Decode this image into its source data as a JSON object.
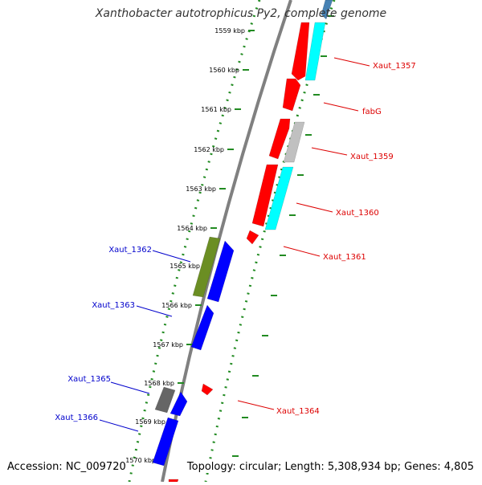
{
  "title": "Xanthobacter autotrophicus Py2, complete genome",
  "footer": {
    "accession": "Accession: NC_009720",
    "topology": "Topology: circular; Length: 5,308,934 bp; Genes: 4,805"
  },
  "colors": {
    "scale": "#228B22",
    "backbone": "#808080",
    "forward_label": "#dd0000",
    "reverse_label": "#0000cc",
    "red": "#ff0000",
    "cyan": "#00ffff",
    "gray": "#c0c0c0",
    "darkgray": "#666666",
    "olive": "#6b8e23",
    "blue": "#0000ff",
    "steel": "#4682b4"
  },
  "scale_ticks": [
    "1559 kbp",
    "1560 kbp",
    "1561 kbp",
    "1562 kbp",
    "1563 kbp",
    "1564 kbp",
    "1565 kbp",
    "1566 kbp",
    "1567 kbp",
    "1568 kbp",
    "1569 kbp",
    "1570 kbp"
  ],
  "genes": [
    {
      "label": "Xaut_1357",
      "strand": "forward",
      "color": "red"
    },
    {
      "label": "fabG",
      "strand": "forward",
      "color": "red"
    },
    {
      "label": "Xaut_1359",
      "strand": "forward",
      "color": "gray"
    },
    {
      "label": "Xaut_1360",
      "strand": "forward",
      "color": "cyan"
    },
    {
      "label": "Xaut_1361",
      "strand": "forward",
      "color": "red"
    },
    {
      "label": "Xaut_1362",
      "strand": "reverse",
      "color": "olive"
    },
    {
      "label": "Xaut_1363",
      "strand": "reverse",
      "color": "blue"
    },
    {
      "label": "Xaut_1364",
      "strand": "forward",
      "color": "red"
    },
    {
      "label": "Xaut_1365",
      "strand": "reverse",
      "color": "darkgray"
    },
    {
      "label": "Xaut_1366",
      "strand": "reverse",
      "color": "blue"
    }
  ]
}
